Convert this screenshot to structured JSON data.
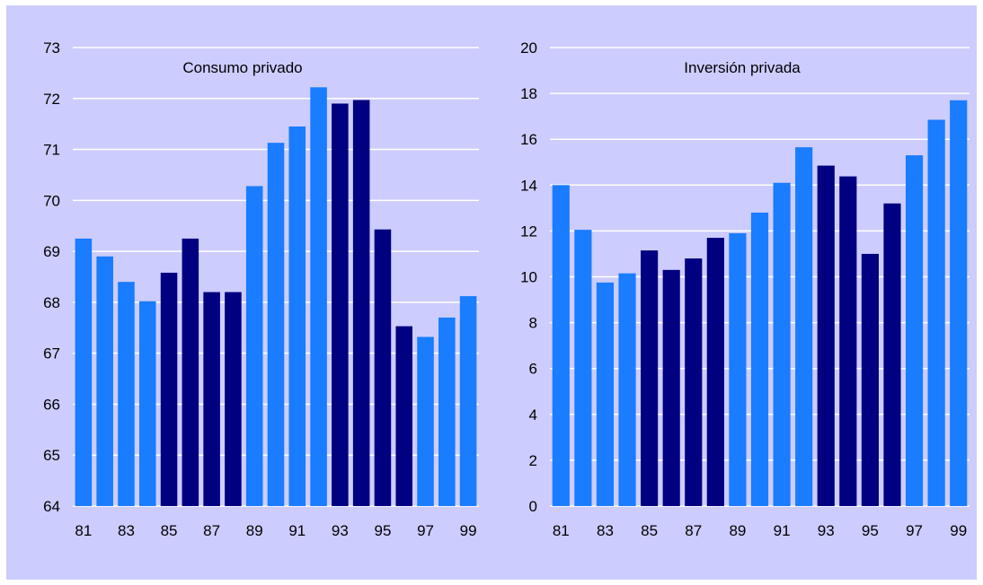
{
  "chart_data": [
    {
      "type": "bar",
      "title": "Consumo privado",
      "xlabel": "",
      "ylabel": "",
      "categories": [
        "81",
        "82",
        "83",
        "84",
        "85",
        "86",
        "87",
        "88",
        "89",
        "90",
        "91",
        "92",
        "93",
        "94",
        "95",
        "96",
        "97",
        "98",
        "99"
      ],
      "values": [
        69.25,
        68.9,
        68.4,
        68.02,
        68.58,
        69.25,
        68.2,
        68.2,
        70.28,
        71.13,
        71.45,
        72.22,
        71.9,
        71.97,
        69.43,
        67.53,
        67.32,
        67.7,
        68.12
      ],
      "highlight": [
        false,
        false,
        false,
        false,
        true,
        true,
        true,
        true,
        false,
        false,
        false,
        false,
        true,
        true,
        true,
        true,
        false,
        false,
        false
      ],
      "x_tick_labels": [
        "81",
        "83",
        "85",
        "87",
        "89",
        "91",
        "93",
        "95",
        "97",
        "99"
      ],
      "y_ticks": [
        64,
        65,
        66,
        67,
        68,
        69,
        70,
        71,
        72,
        73
      ],
      "ylim": [
        64,
        73
      ],
      "grid": true,
      "colors": {
        "bar": "#1a7cff",
        "bar_highlight": "#000080",
        "grid": "#ffffff",
        "background": "#ccccff"
      }
    },
    {
      "type": "bar",
      "title": "Inversión privada",
      "xlabel": "",
      "ylabel": "",
      "categories": [
        "81",
        "82",
        "83",
        "84",
        "85",
        "86",
        "87",
        "88",
        "89",
        "90",
        "91",
        "92",
        "93",
        "94",
        "95",
        "96",
        "97",
        "98",
        "99"
      ],
      "values": [
        14.0,
        12.05,
        9.75,
        10.15,
        11.15,
        10.3,
        10.8,
        11.7,
        11.9,
        12.8,
        14.1,
        15.65,
        14.85,
        14.38,
        11.0,
        13.2,
        15.3,
        16.85,
        17.7
      ],
      "highlight": [
        false,
        false,
        false,
        false,
        true,
        true,
        true,
        true,
        false,
        false,
        false,
        false,
        true,
        true,
        true,
        true,
        false,
        false,
        false
      ],
      "x_tick_labels": [
        "81",
        "83",
        "85",
        "87",
        "89",
        "91",
        "93",
        "95",
        "97",
        "99"
      ],
      "y_ticks": [
        0,
        2,
        4,
        6,
        8,
        10,
        12,
        14,
        16,
        18,
        20
      ],
      "ylim": [
        0,
        20
      ],
      "grid": true,
      "colors": {
        "bar": "#1a7cff",
        "bar_highlight": "#000080",
        "grid": "#ffffff",
        "background": "#ccccff"
      }
    }
  ]
}
